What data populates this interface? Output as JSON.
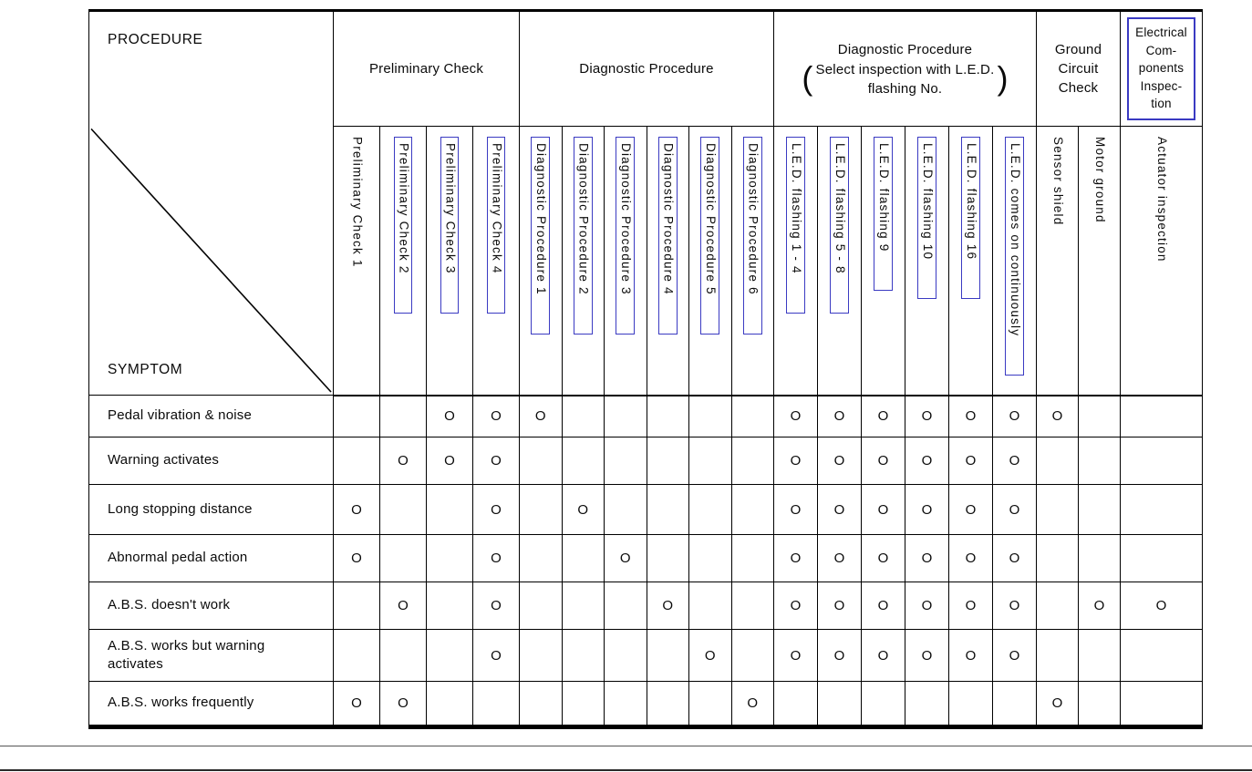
{
  "corner": {
    "procedure_label": "PROCEDURE",
    "symptom_label": "SYMPTOM"
  },
  "header_groups": [
    {
      "lines": [
        "Preliminary Check"
      ],
      "span": 4,
      "boxed": false
    },
    {
      "lines": [
        "Diagnostic Procedure"
      ],
      "span": 6,
      "boxed": false
    },
    {
      "lines": [
        "Diagnostic Procedure"
      ],
      "paren_lines": [
        "Select inspection with L.E.D.",
        "flashing No."
      ],
      "span": 6,
      "boxed": false
    },
    {
      "lines": [
        "Ground",
        "Circuit",
        "Check"
      ],
      "span": 2,
      "boxed": false
    },
    {
      "lines": [
        "Electrical",
        "Com-",
        "ponents",
        "Inspec-",
        "tion"
      ],
      "span": 1,
      "boxed": true
    }
  ],
  "columns": [
    {
      "label": "Preliminary Check 1",
      "boxed": false
    },
    {
      "label": "Preliminary Check 2",
      "boxed": true
    },
    {
      "label": "Preliminary Check 3",
      "boxed": true
    },
    {
      "label": "Preliminary Check 4",
      "boxed": true
    },
    {
      "label": "Diagnostic Procedure 1",
      "boxed": true
    },
    {
      "label": "Diagnostic Procedure 2",
      "boxed": true
    },
    {
      "label": "Diagnostic Procedure 3",
      "boxed": true
    },
    {
      "label": "Diagnostic Procedure 4",
      "boxed": true
    },
    {
      "label": "Diagnostic Procedure 5",
      "boxed": true
    },
    {
      "label": "Diagnostic Procedure 6",
      "boxed": true
    },
    {
      "label": "L.E.D. flashing 1 - 4",
      "boxed": true
    },
    {
      "label": "L.E.D. flashing 5 - 8",
      "boxed": true
    },
    {
      "label": "L.E.D. flashing 9",
      "boxed": true
    },
    {
      "label": "L.E.D. flashing 10",
      "boxed": true
    },
    {
      "label": "L.E.D. flashing 16",
      "boxed": true
    },
    {
      "label": "L.E.D. comes on continuously",
      "boxed": true
    },
    {
      "label": "Sensor shield",
      "boxed": false
    },
    {
      "label": "Motor ground",
      "boxed": false
    },
    {
      "label": "Actuator inspection",
      "boxed": false
    }
  ],
  "mark_symbol": "O",
  "rows": [
    {
      "symptom": "Pedal vibration & noise",
      "marks": [
        2,
        3,
        4,
        10,
        11,
        12,
        13,
        14,
        15,
        16
      ]
    },
    {
      "symptom": "Warning activates",
      "marks": [
        1,
        2,
        3,
        10,
        11,
        12,
        13,
        14,
        15
      ]
    },
    {
      "symptom": "Long stopping distance",
      "marks": [
        0,
        3,
        5,
        10,
        11,
        12,
        13,
        14,
        15
      ]
    },
    {
      "symptom": "Abnormal pedal action",
      "marks": [
        0,
        3,
        6,
        10,
        11,
        12,
        13,
        14,
        15
      ]
    },
    {
      "symptom": "A.B.S. doesn't work",
      "marks": [
        1,
        3,
        7,
        10,
        11,
        12,
        13,
        14,
        15,
        17,
        18
      ]
    },
    {
      "symptom": "A.B.S. works but warning activates",
      "marks": [
        3,
        8,
        10,
        11,
        12,
        13,
        14,
        15
      ]
    },
    {
      "symptom": "A.B.S. works frequently",
      "marks": [
        0,
        1,
        9,
        16
      ]
    }
  ],
  "colors": {
    "annotation_blue": "#3a3ac2",
    "line_black": "#000000"
  }
}
